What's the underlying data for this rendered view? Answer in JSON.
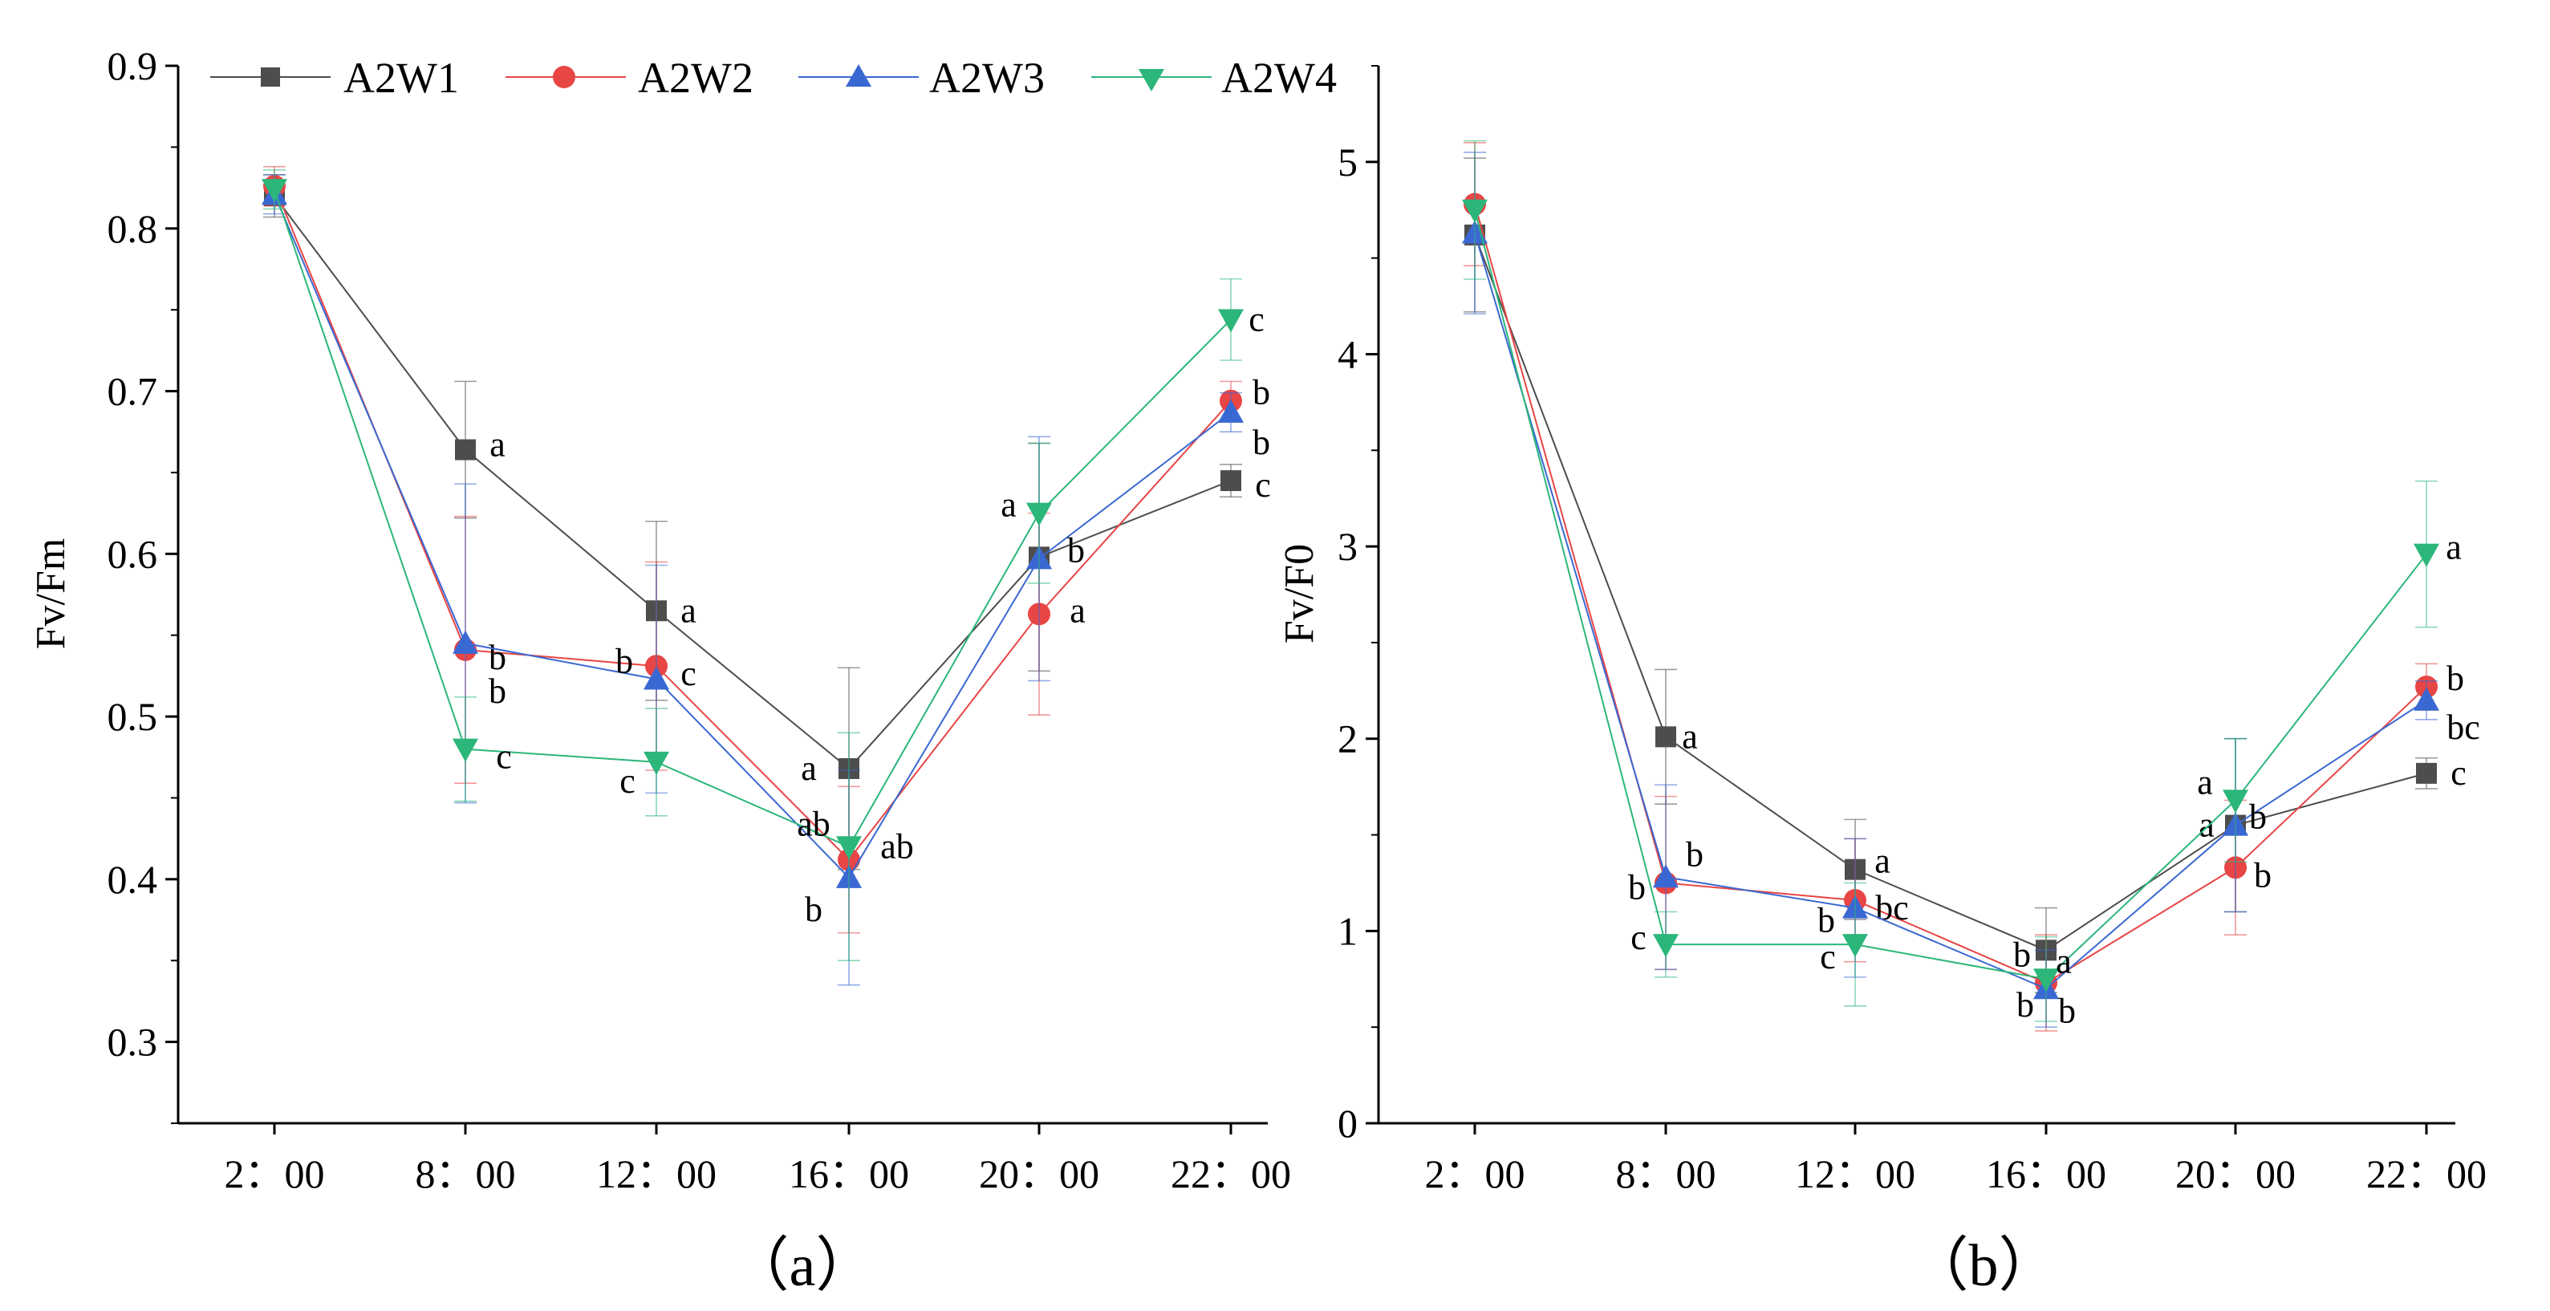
{
  "figure": {
    "legend_labels": [
      "A2W1",
      "A2W2",
      "A2W3",
      "A2W4"
    ],
    "panel_labels": [
      "（a）",
      "（b）"
    ]
  },
  "chart_data": [
    {
      "type": "line",
      "panel": "a",
      "title": "",
      "xlabel": "",
      "ylabel": "Fv/Fm",
      "categories": [
        "2：00",
        "8：00",
        "12：00",
        "16：00",
        "20：00",
        "22：00"
      ],
      "ylim": [
        0.25,
        0.9
      ],
      "yticks": [
        0.3,
        0.4,
        0.5,
        0.6,
        0.7,
        0.8,
        0.9
      ],
      "legend_position": "top",
      "series": [
        {
          "name": "A2W1",
          "color": "#4d4d4d",
          "marker": "square",
          "values": [
            0.82,
            0.664,
            0.565,
            0.468,
            0.598,
            0.645
          ],
          "errors": [
            0.013,
            0.042,
            0.055,
            0.062,
            0.07,
            0.01
          ],
          "letters": [
            "",
            "a",
            "a",
            "a",
            "",
            "c"
          ]
        },
        {
          "name": "A2W2",
          "color": "#e84545",
          "marker": "circle",
          "values": [
            0.826,
            0.541,
            0.531,
            0.412,
            0.563,
            0.694
          ],
          "errors": [
            0.012,
            0.082,
            0.064,
            0.045,
            0.062,
            0.012
          ],
          "letters": [
            "",
            "b",
            "c",
            "ab",
            "a",
            "b"
          ]
        },
        {
          "name": "A2W3",
          "color": "#3a68d2",
          "marker": "triangle-up",
          "values": [
            0.821,
            0.545,
            0.523,
            0.401,
            0.597,
            0.687
          ],
          "errors": [
            0.012,
            0.098,
            0.07,
            0.066,
            0.075,
            0.012
          ],
          "letters": [
            "",
            "b",
            "b",
            "b",
            "b",
            "b"
          ]
        },
        {
          "name": "A2W4",
          "color": "#2cb67a",
          "marker": "triangle-down",
          "values": [
            0.824,
            0.48,
            0.472,
            0.42,
            0.625,
            0.744
          ],
          "errors": [
            0.012,
            0.032,
            0.033,
            0.07,
            0.043,
            0.025
          ],
          "letters": [
            "",
            "c",
            "c",
            "ab",
            "a",
            "c"
          ]
        }
      ]
    },
    {
      "type": "line",
      "panel": "b",
      "title": "",
      "xlabel": "",
      "ylabel": "Fv/F0",
      "categories": [
        "2：00",
        "8：00",
        "12：00",
        "16：00",
        "20：00",
        "22：00"
      ],
      "ylim": [
        0,
        5.5
      ],
      "yticks": [
        0,
        1,
        2,
        3,
        4,
        5
      ],
      "legend_position": "none",
      "series": [
        {
          "name": "A2W1",
          "color": "#4d4d4d",
          "marker": "square",
          "values": [
            4.62,
            2.01,
            1.32,
            0.9,
            1.55,
            1.82
          ],
          "errors": [
            0.4,
            0.35,
            0.26,
            0.22,
            0.45,
            0.08
          ],
          "letters": [
            "",
            "a",
            "a",
            "b",
            "a",
            "c"
          ]
        },
        {
          "name": "A2W2",
          "color": "#e84545",
          "marker": "circle",
          "values": [
            4.78,
            1.25,
            1.16,
            0.73,
            1.33,
            2.27
          ],
          "errors": [
            0.32,
            0.45,
            0.32,
            0.25,
            0.35,
            0.12
          ],
          "letters": [
            "",
            "b",
            "bc",
            "b",
            "b",
            "b"
          ]
        },
        {
          "name": "A2W3",
          "color": "#3a68d2",
          "marker": "triangle-up",
          "values": [
            4.63,
            1.28,
            1.12,
            0.7,
            1.55,
            2.2
          ],
          "errors": [
            0.42,
            0.48,
            0.36,
            0.2,
            0.45,
            0.1
          ],
          "letters": [
            "",
            "b",
            "b",
            "b",
            "b",
            "bc"
          ]
        },
        {
          "name": "A2W4",
          "color": "#2cb67a",
          "marker": "triangle-down",
          "values": [
            4.75,
            0.93,
            0.93,
            0.75,
            1.68,
            2.96
          ],
          "errors": [
            0.36,
            0.17,
            0.32,
            0.22,
            0.32,
            0.38
          ],
          "letters": [
            "",
            "c",
            "c",
            "a",
            "a",
            "a"
          ]
        }
      ]
    }
  ]
}
